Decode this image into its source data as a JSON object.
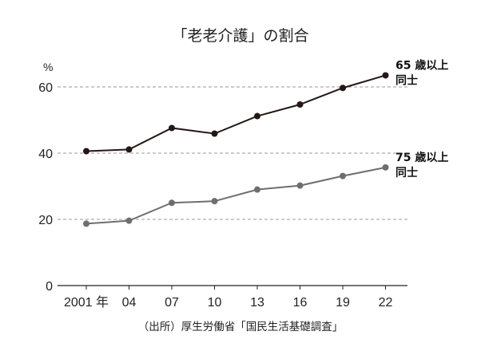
{
  "chart_data": {
    "type": "line",
    "title": "「老老介護」の割合",
    "ylabel": "%",
    "source": "（出所）厚生労働省「国民生活基礎調査」",
    "x": [
      "2001",
      "04",
      "07",
      "10",
      "13",
      "16",
      "19",
      "22"
    ],
    "x_tick_labels": [
      "2001 年",
      "04",
      "07",
      "10",
      "13",
      "16",
      "19",
      "22"
    ],
    "ylim": [
      0,
      70
    ],
    "yticks": [
      0,
      20,
      40,
      60
    ],
    "grid": "horizontal dashed at 20, 40, 60",
    "series": [
      {
        "label_line1": "65 歳以上",
        "label_line2": "同士",
        "color": "#231815",
        "values": [
          40.6,
          41.1,
          47.6,
          45.9,
          51.2,
          54.7,
          59.7,
          63.5
        ]
      },
      {
        "label_line1": "75 歳以上",
        "label_line2": "同士",
        "color": "#6e6e6e",
        "values": [
          18.7,
          19.6,
          25.0,
          25.5,
          29.0,
          30.2,
          33.1,
          35.7
        ]
      }
    ]
  }
}
